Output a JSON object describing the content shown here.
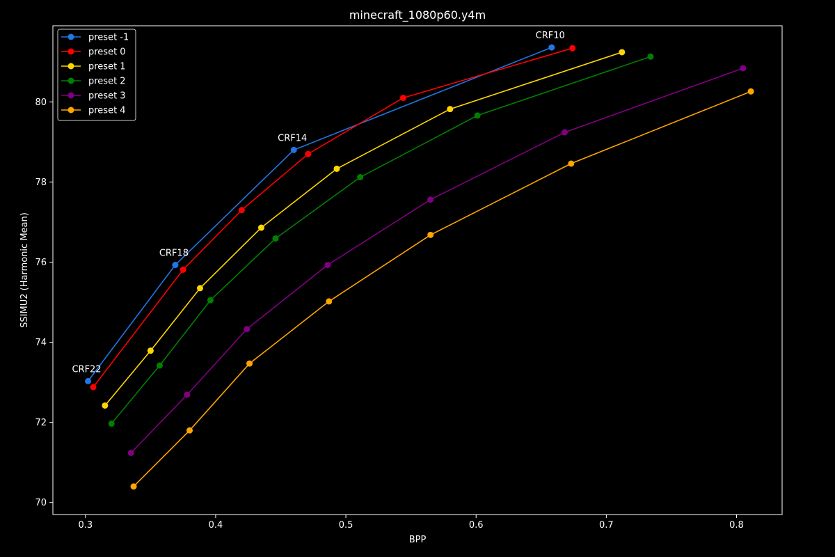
{
  "chart_data": {
    "type": "line",
    "title": "minecraft_1080p60.y4m",
    "xlabel": "BPP",
    "ylabel": "SSIMU2 (Harmonic Mean)",
    "xlim": [
      0.275,
      0.835
    ],
    "ylim": [
      69.7,
      81.9
    ],
    "xticks": [
      0.3,
      0.4,
      0.5,
      0.6,
      0.7,
      0.8
    ],
    "xtick_labels": [
      "0.3",
      "0.4",
      "0.5",
      "0.6",
      "0.7",
      "0.8"
    ],
    "yticks": [
      70,
      72,
      74,
      76,
      78,
      80
    ],
    "ytick_labels": [
      "70",
      "72",
      "74",
      "76",
      "78",
      "80"
    ],
    "grid": false,
    "legend_position": "top-left",
    "series": [
      {
        "name": "preset -1",
        "color": "#1f77e4",
        "points": [
          [
            0.302,
            73.03
          ],
          [
            0.369,
            75.93
          ],
          [
            0.46,
            78.8
          ],
          [
            0.658,
            81.36
          ]
        ]
      },
      {
        "name": "preset 0",
        "color": "#ff0000",
        "points": [
          [
            0.306,
            72.88
          ],
          [
            0.375,
            75.81
          ],
          [
            0.42,
            77.3
          ],
          [
            0.471,
            78.7
          ],
          [
            0.544,
            80.1
          ],
          [
            0.674,
            81.34
          ]
        ]
      },
      {
        "name": "preset 1",
        "color": "#ffd700",
        "points": [
          [
            0.315,
            72.42
          ],
          [
            0.35,
            73.79
          ],
          [
            0.388,
            75.35
          ],
          [
            0.435,
            76.86
          ],
          [
            0.493,
            78.33
          ],
          [
            0.58,
            79.82
          ],
          [
            0.712,
            81.24
          ]
        ]
      },
      {
        "name": "preset 2",
        "color": "#008000",
        "points": [
          [
            0.32,
            71.97
          ],
          [
            0.357,
            73.42
          ],
          [
            0.396,
            75.05
          ],
          [
            0.446,
            76.59
          ],
          [
            0.511,
            78.12
          ],
          [
            0.601,
            79.66
          ],
          [
            0.734,
            81.13
          ]
        ]
      },
      {
        "name": "preset 3",
        "color": "#800080",
        "points": [
          [
            0.335,
            71.24
          ],
          [
            0.378,
            72.69
          ],
          [
            0.424,
            74.33
          ],
          [
            0.486,
            75.93
          ],
          [
            0.565,
            77.56
          ],
          [
            0.668,
            79.24
          ],
          [
            0.805,
            80.84
          ]
        ]
      },
      {
        "name": "preset 4",
        "color": "#ffa500",
        "points": [
          [
            0.337,
            70.4
          ],
          [
            0.38,
            71.8
          ],
          [
            0.426,
            73.47
          ],
          [
            0.487,
            75.02
          ],
          [
            0.565,
            76.68
          ],
          [
            0.673,
            78.46
          ],
          [
            0.811,
            80.26
          ]
        ]
      }
    ],
    "annotations": [
      {
        "text": "CRF22",
        "x": 0.302,
        "y": 73.03
      },
      {
        "text": "CRF18",
        "x": 0.369,
        "y": 75.93
      },
      {
        "text": "CRF14",
        "x": 0.46,
        "y": 78.8
      },
      {
        "text": "CRF10",
        "x": 0.658,
        "y": 81.36
      }
    ]
  }
}
